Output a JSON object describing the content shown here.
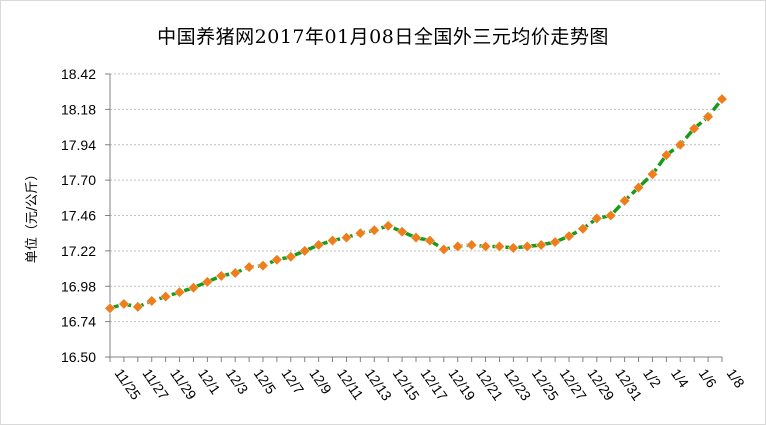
{
  "chart_data": {
    "type": "line",
    "title": "中国养猪网2017年01月08日全国外三元均价走势图",
    "xlabel": "",
    "ylabel": "单位（元/公斤）",
    "ylim": [
      16.5,
      18.42
    ],
    "yticks": [
      "16.50",
      "16.74",
      "16.98",
      "17.22",
      "17.46",
      "17.70",
      "17.94",
      "18.18",
      "18.42"
    ],
    "grid": true,
    "legend": "none",
    "x": [
      "11/25",
      "11/26",
      "11/27",
      "11/28",
      "11/29",
      "11/30",
      "12/1",
      "12/2",
      "12/3",
      "12/4",
      "12/5",
      "12/6",
      "12/7",
      "12/8",
      "12/9",
      "12/10",
      "12/11",
      "12/12",
      "12/13",
      "12/14",
      "12/15",
      "12/16",
      "12/17",
      "12/18",
      "12/19",
      "12/20",
      "12/21",
      "12/22",
      "12/23",
      "12/24",
      "12/25",
      "12/26",
      "12/27",
      "12/28",
      "12/29",
      "12/30",
      "12/31",
      "1/1",
      "1/2",
      "1/3",
      "1/4",
      "1/5",
      "1/6",
      "1/7",
      "1/8"
    ],
    "xtick_labels": [
      "11/25",
      "11/27",
      "11/29",
      "12/1",
      "12/3",
      "12/5",
      "12/7",
      "12/9",
      "12/11",
      "12/13",
      "12/15",
      "12/17",
      "12/19",
      "12/21",
      "12/23",
      "12/25",
      "12/27",
      "12/29",
      "12/31",
      "1/2",
      "1/4",
      "1/6",
      "1/8"
    ],
    "series": [
      {
        "values": [
          16.83,
          16.86,
          16.84,
          16.88,
          16.91,
          16.94,
          16.97,
          17.01,
          17.05,
          17.07,
          17.11,
          17.12,
          17.16,
          17.18,
          17.22,
          17.26,
          17.29,
          17.31,
          17.34,
          17.36,
          17.39,
          17.35,
          17.31,
          17.29,
          17.23,
          17.25,
          17.26,
          17.25,
          17.25,
          17.24,
          17.25,
          17.26,
          17.28,
          17.32,
          17.37,
          17.44,
          17.46,
          17.56,
          17.65,
          17.74,
          17.87,
          17.94,
          18.05,
          18.13,
          18.25
        ],
        "line_color": "#1a9a1a",
        "marker_color": "#f07d1c"
      }
    ]
  }
}
